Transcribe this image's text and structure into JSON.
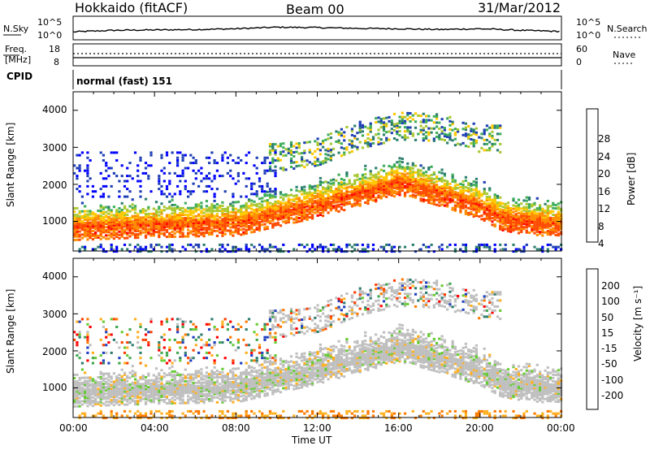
{
  "header": {
    "station": "Hokkaido (fitACF)",
    "beam": "Beam 00",
    "date": "31/Mar/2012"
  },
  "nsky_panel": {
    "left_label": "N.Sky",
    "right_label": "N.Search",
    "left_ticks": [
      "10^5",
      "10^0"
    ],
    "right_ticks": [
      "10^5",
      "10^0"
    ]
  },
  "freq_panel": {
    "left_label_1": "Freq.",
    "left_label_2": "[MHz]",
    "right_label": "Nave",
    "left_ticks": [
      "18",
      "8"
    ],
    "right_ticks": [
      "60",
      "0"
    ]
  },
  "cpid_panel": {
    "label": "CPID",
    "text": "normal (fast) 151"
  },
  "power_panel": {
    "ylabel": "Slant Range [km]",
    "colorbar_label": "Power [dB]",
    "yticks": [
      "4000",
      "3000",
      "2000",
      "1000"
    ],
    "cb_ticks": [
      "28",
      "24",
      "20",
      "16",
      "12",
      "8",
      "4"
    ],
    "cb_colors": [
      "#ff0000",
      "#ff4a00",
      "#ff8c00",
      "#ffc800",
      "#a8c832",
      "#3fae5a",
      "#2d7f6f",
      "#1e3fb4",
      "#0000ff"
    ]
  },
  "velocity_panel": {
    "ylabel": "Slant Range [km]",
    "colorbar_label": "Velocity [m s⁻¹]",
    "yticks": [
      "4000",
      "3000",
      "2000",
      "1000"
    ],
    "cb_ticks": [
      "200",
      "100",
      "50",
      "15",
      "-15",
      "-50",
      "-100",
      "-200"
    ],
    "cb_colors": [
      "#1f3fbf",
      "#2e7d6d",
      "#3fa84e",
      "#66cc33",
      "#bfbfbf",
      "#ffb020",
      "#ff7a00",
      "#ff4000",
      "#ff0000"
    ]
  },
  "x_axis": {
    "label": "Time UT",
    "ticks": [
      "00:00",
      "04:00",
      "08:00",
      "12:00",
      "16:00",
      "20:00",
      "00:00"
    ]
  },
  "chart_data": [
    {
      "type": "line",
      "title": "N.Sky / N.Search",
      "x_range": [
        "00:00",
        "24:00"
      ],
      "series": [
        {
          "name": "N.Sky",
          "x_hours": [
            0,
            2,
            4,
            6,
            8,
            10,
            12,
            14,
            16,
            18,
            20,
            22,
            24
          ],
          "values_log10": [
            1.2,
            1.6,
            1.7,
            1.8,
            2.0,
            2.4,
            2.3,
            2.1,
            2.0,
            1.8,
            2.0,
            1.6,
            1.3
          ]
        }
      ]
    },
    {
      "type": "line",
      "title": "Frequency / Nave",
      "x_range": [
        "00:00",
        "24:00"
      ],
      "series": [
        {
          "name": "Freq. [MHz]",
          "x_hours": [
            0,
            24
          ],
          "values": [
            10.4,
            10.4
          ]
        },
        {
          "name": "Nave",
          "x_hours": [
            0,
            24
          ],
          "values": [
            20,
            20
          ]
        }
      ]
    },
    {
      "type": "heatmap",
      "title": "Power [dB]",
      "x_range_hours": [
        0,
        24
      ],
      "y_range_km": [
        200,
        4500
      ],
      "ground_scatter_band": {
        "x_hours": [
          0,
          4,
          8,
          10,
          12,
          14,
          16,
          18,
          20,
          21,
          22,
          24
        ],
        "center_km": [
          880,
          960,
          1000,
          1250,
          1500,
          1800,
          2100,
          1800,
          1450,
          1150,
          1050,
          950
        ]
      },
      "upper_band": {
        "x_hours": [
          10,
          12,
          14,
          16,
          18,
          20
        ],
        "center_km": [
          2800,
          2950,
          3400,
          3650,
          3600,
          3300
        ]
      },
      "colorbar_range_db": [
        0,
        32
      ]
    },
    {
      "type": "heatmap",
      "title": "Velocity [m s⁻¹]",
      "x_range_hours": [
        0,
        24
      ],
      "y_range_km": [
        200,
        4500
      ],
      "ground_scatter_band": {
        "x_hours": [
          0,
          4,
          8,
          10,
          12,
          14,
          16,
          18,
          20,
          21,
          22,
          24
        ],
        "center_km": [
          880,
          960,
          1000,
          1250,
          1500,
          1800,
          2100,
          1800,
          1450,
          1150,
          1050,
          950
        ]
      },
      "colorbar_range_ms": [
        -250,
        250
      ]
    }
  ]
}
